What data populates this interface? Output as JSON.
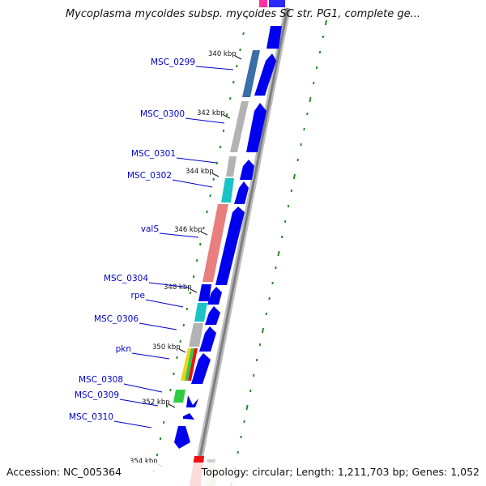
{
  "title": "Mycoplasma mycoides subsp. mycoides SC str. PG1, complete ge...",
  "footer": {
    "accession": "Accession: NC_005364",
    "summary": "Topology: circular; Length: 1,211,703 bp; Genes: 1,052"
  },
  "colors": {
    "cds_arrow": "#0000ee",
    "backbone": "#7f7f7f",
    "label": "#0000cc",
    "tick": "#2a8a2a",
    "gene_blue": "#3b6fa8",
    "gene_gray": "#b3b3b3",
    "gene_cyan": "#19c3c7",
    "gene_salmon": "#e87e7e",
    "gene_green": "#2ecc40",
    "gene_red": "#ee1111",
    "gene_magenta": "#ff2fa0"
  },
  "kbp_ticks": [
    {
      "label": "340 kbp"
    },
    {
      "label": "342 kbp"
    },
    {
      "label": "344 kbp"
    },
    {
      "label": "346 kbp"
    },
    {
      "label": "348 kbp"
    },
    {
      "label": "350 kbp"
    },
    {
      "label": "352 kbp"
    },
    {
      "label": "354 kbp"
    }
  ],
  "genes": [
    {
      "name": "MSC_0299"
    },
    {
      "name": "MSC_0300"
    },
    {
      "name": "MSC_0301"
    },
    {
      "name": "MSC_0302"
    },
    {
      "name": "valS"
    },
    {
      "name": "MSC_0304"
    },
    {
      "name": "rpe"
    },
    {
      "name": "MSC_0306"
    },
    {
      "name": "pkn"
    },
    {
      "name": "MSC_0308"
    },
    {
      "name": "MSC_0309"
    },
    {
      "name": "MSC_0310"
    }
  ]
}
